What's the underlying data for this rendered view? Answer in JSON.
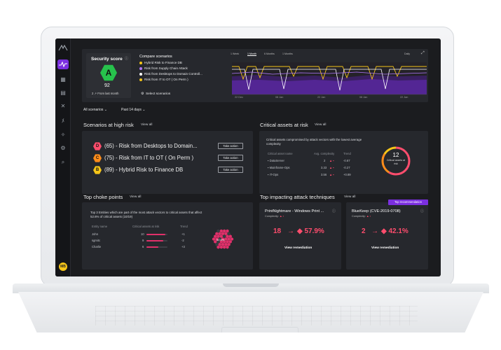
{
  "sidebar": {
    "icons": [
      "logo-icon",
      "activity-icon",
      "grid-icon",
      "document-icon",
      "network-icon",
      "people-icon",
      "puzzle-icon",
      "settings-icon",
      "report-icon"
    ],
    "avatar_initials": "MB"
  },
  "score": {
    "title": "Security score",
    "grade": "A",
    "value": "92",
    "change": "2",
    "change_label": "From last month",
    "grade_color": "#27c24c"
  },
  "compare": {
    "title": "Compare scenarios",
    "items": [
      {
        "label": "Hybrid Risk to Finance DB",
        "color": "#f5c518"
      },
      {
        "label": "Risk from Supply Chain Attack",
        "color": "#b077ff"
      },
      {
        "label": "Risk from Desktops to Domain Controll...",
        "color": "#ffffff"
      },
      {
        "label": "Risk from IT to OT ( On Perm )",
        "color": "#f5c518"
      }
    ],
    "select_label": "Select scenarios"
  },
  "chart": {
    "range_tabs": [
      "1 Week",
      "1 Month",
      "6 Months",
      "1 Months"
    ],
    "granularity": "Daily",
    "x_ticks": [
      "22 Dec",
      "08 Jan",
      "22 Jan",
      "08 Jan",
      "22 Jan"
    ]
  },
  "filters": {
    "scenarios": "All scenarios",
    "period": "Past 14 days"
  },
  "high_risk": {
    "title": "Scenarios at high risk",
    "view_all": "View all",
    "items": [
      {
        "grade": "D",
        "color": "#ff4d6d",
        "text": "(65) - Risk from Desktops to Domain...",
        "action": "Take action"
      },
      {
        "grade": "C",
        "color": "#ff8c1a",
        "text": "(75) - Risk from IT to OT ( On Perm )",
        "action": "Take action"
      },
      {
        "grade": "B",
        "color": "#f5c518",
        "text": "(89) - Hybrid Risk to Finance DB",
        "action": "Take action"
      }
    ]
  },
  "critical": {
    "title": "Critical assets at risk",
    "view_all": "View all",
    "desc": "Critical assets compromised by attack vectors with the lowest average complexity",
    "headers": [
      "Critical asset name",
      "Avg. complexity",
      "Trend"
    ],
    "rows": [
      {
        "name": "DataServer",
        "complexity": "2",
        "delta": "-0.67"
      },
      {
        "name": "Mainframe-Ops",
        "complexity": "3.33",
        "delta": "-0.27"
      },
      {
        "name": "IT-Ops",
        "complexity": "3.56",
        "delta": "+0.89"
      }
    ],
    "donut_value": "12",
    "donut_label": "Critical assets at risk"
  },
  "choke": {
    "title": "Top choke points",
    "view_all": "View all",
    "desc": "Top 3 Entities which are part of the most attack vectors to critical assets that affect 52.6% of critical assets (10/19)",
    "headers": [
      "Entity name",
      "Critical assets at risk",
      "Trend"
    ],
    "rows": [
      {
        "name": "John",
        "value": "10",
        "trend": "+1",
        "fraction": 0.9
      },
      {
        "name": "sgmitc",
        "value": "9",
        "trend": "-2",
        "fraction": 0.8
      },
      {
        "name": "Charlie",
        "value": "6",
        "trend": "+3",
        "fraction": 0.55
      }
    ],
    "honeycomb_label": "52.6%"
  },
  "attack": {
    "title": "Top impacting attack techniques",
    "view_all": "View all",
    "cards": [
      {
        "name": "PrintNightmare - Windows Print ...",
        "complexity_label": "Complexity:",
        "from": "18",
        "to": "57.9%",
        "button": "View remediation",
        "top": ""
      },
      {
        "name": "BlueKeep (CVE-2019-0708)",
        "complexity_label": "Complexity:",
        "from": "2",
        "to": "42.1%",
        "button": "View remediation",
        "top": "Top recommendation"
      }
    ]
  }
}
